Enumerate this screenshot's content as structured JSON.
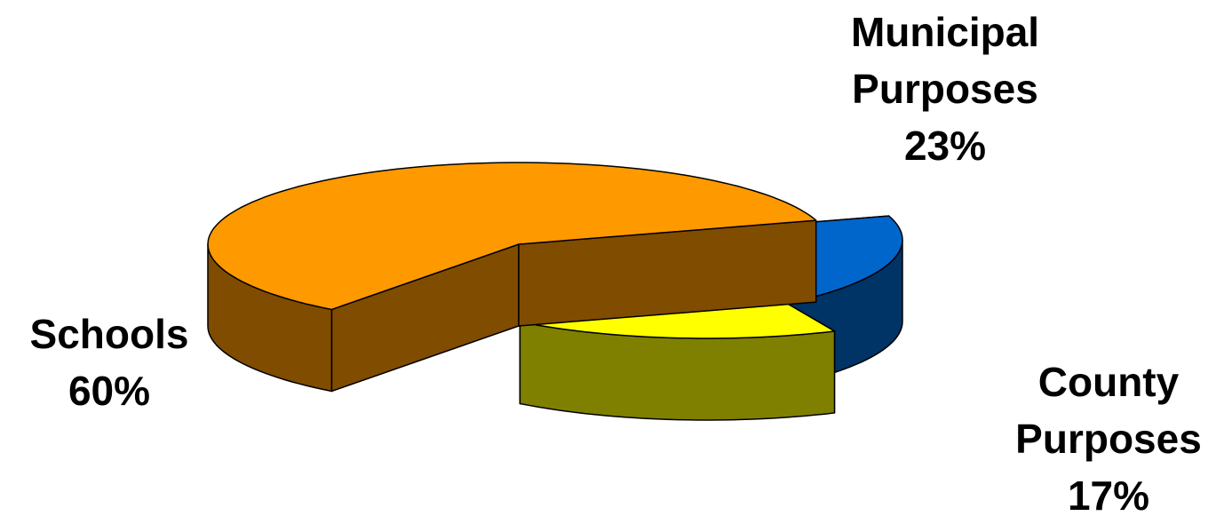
{
  "chart_data": {
    "type": "pie",
    "style": "3d-exploded",
    "title": "",
    "slices": [
      {
        "label_lines": [
          "Municipal",
          "Purposes"
        ],
        "percent_label": "23%",
        "value": 23,
        "top_color": "#0066cc",
        "side_color": "#003366"
      },
      {
        "label_lines": [
          "County",
          "Purposes"
        ],
        "percent_label": "17%",
        "value": 17,
        "top_color": "#ffff00",
        "side_color": "#808000"
      },
      {
        "label_lines": [
          "Schools"
        ],
        "percent_label": "60%",
        "value": 60,
        "top_color": "#ff9900",
        "side_color": "#804c00"
      }
    ]
  }
}
